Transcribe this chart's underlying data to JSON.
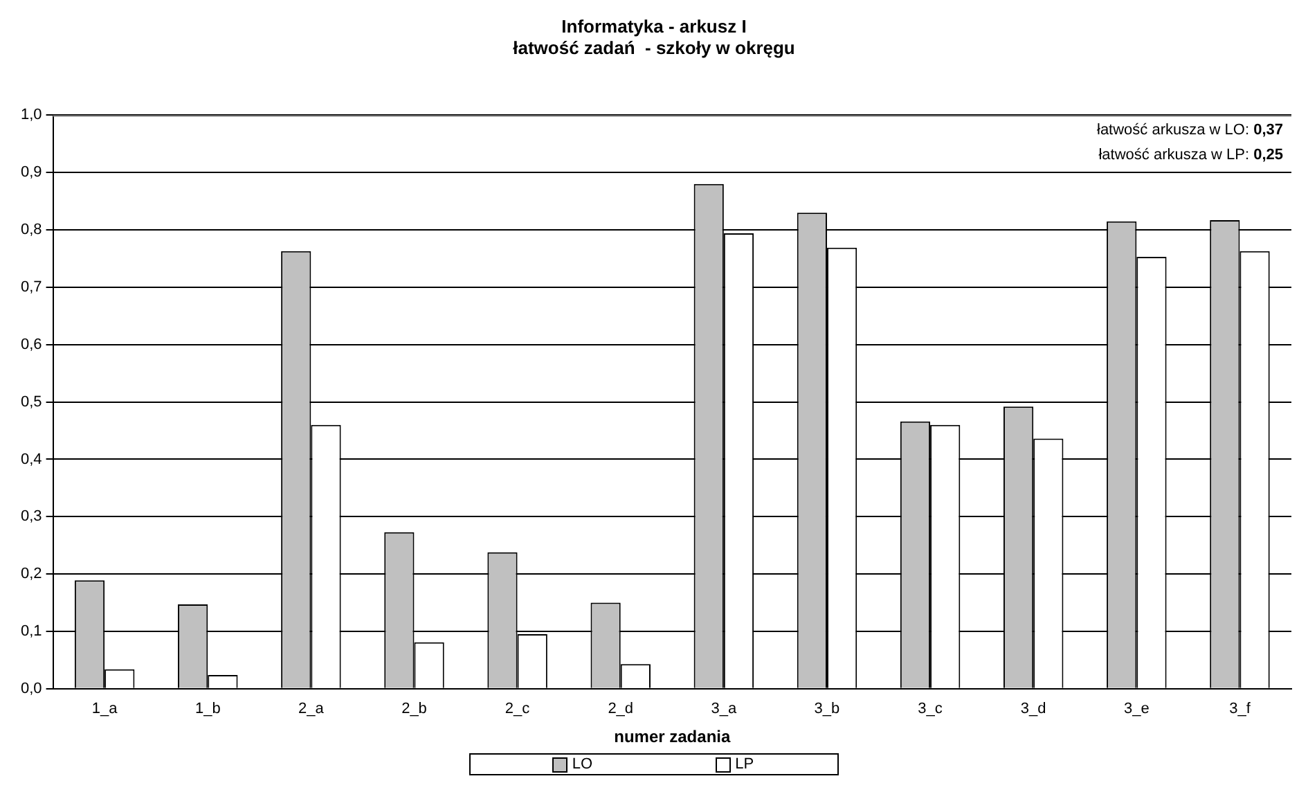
{
  "chart_data": {
    "type": "bar",
    "title": "Informatyka - arkusz I",
    "subtitle": "łatwość zadań  - szkoły w okręgu",
    "xlabel": "numer zadania",
    "categories": [
      "1_a",
      "1_b",
      "2_a",
      "2_b",
      "2_c",
      "2_d",
      "3_a",
      "3_b",
      "3_c",
      "3_d",
      "3_e",
      "3_f"
    ],
    "series": [
      {
        "name": "LO",
        "color": "#c0c0c0",
        "values": [
          0.189,
          0.147,
          0.763,
          0.273,
          0.238,
          0.15,
          0.88,
          0.83,
          0.466,
          0.492,
          0.815,
          0.817
        ]
      },
      {
        "name": "LP",
        "color": "#ffffff",
        "values": [
          0.034,
          0.024,
          0.46,
          0.081,
          0.095,
          0.043,
          0.794,
          0.769,
          0.46,
          0.436,
          0.753,
          0.763
        ]
      }
    ],
    "ylim": [
      0,
      1
    ],
    "yticks": [
      {
        "value": 0,
        "label": "0,0"
      },
      {
        "value": 0.1,
        "label": "0,1"
      },
      {
        "value": 0.2,
        "label": "0,2"
      },
      {
        "value": 0.3,
        "label": "0,3"
      },
      {
        "value": 0.4,
        "label": "0,4"
      },
      {
        "value": 0.5,
        "label": "0,5"
      },
      {
        "value": 0.6,
        "label": "0,6"
      },
      {
        "value": 0.7,
        "label": "0,7"
      },
      {
        "value": 0.8,
        "label": "0,8"
      },
      {
        "value": 0.9,
        "label": "0,9"
      },
      {
        "value": 1,
        "label": "1,0"
      }
    ],
    "annotations": [
      "łatwość arkusza w LO: 0,37",
      "łatwość arkusza w LP: 0,25"
    ],
    "grid": "y",
    "legend": "bottom"
  }
}
